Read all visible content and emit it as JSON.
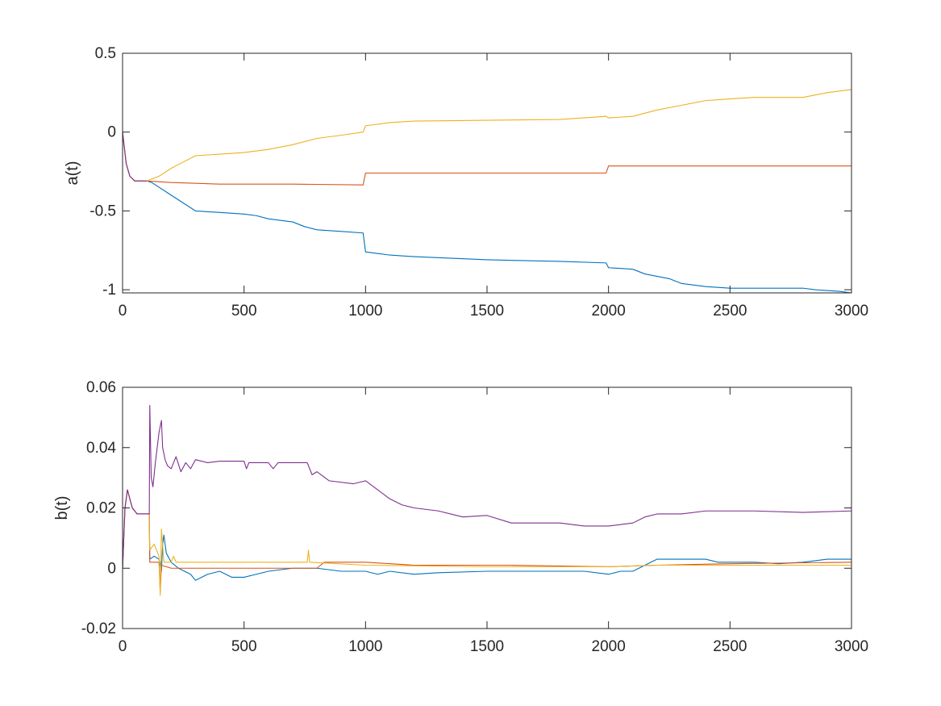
{
  "chart_data": [
    {
      "type": "line",
      "title": "",
      "xlabel": "",
      "ylabel": "a(t)",
      "xlim": [
        0,
        3000
      ],
      "ylim": [
        -1.02,
        0.5
      ],
      "xticks": [
        0,
        500,
        1000,
        1500,
        2000,
        2500,
        3000
      ],
      "xtick_labels": [
        "0",
        "500",
        "1000",
        "1500",
        "2000",
        "2500",
        "3000"
      ],
      "yticks": [
        -1,
        -0.5,
        0,
        0.5
      ],
      "ytick_labels": [
        "-1",
        "-0.5",
        "0",
        "0.5"
      ],
      "grid": false,
      "legend": "none",
      "series": [
        {
          "color": "#0072BD",
          "points": [
            [
              0,
              0
            ],
            [
              15,
              -0.2
            ],
            [
              30,
              -0.28
            ],
            [
              50,
              -0.31
            ],
            [
              100,
              -0.31
            ],
            [
              120,
              -0.32
            ],
            [
              150,
              -0.35
            ],
            [
              200,
              -0.4
            ],
            [
              250,
              -0.45
            ],
            [
              300,
              -0.5
            ],
            [
              400,
              -0.51
            ],
            [
              500,
              -0.52
            ],
            [
              550,
              -0.53
            ],
            [
              600,
              -0.55
            ],
            [
              700,
              -0.57
            ],
            [
              750,
              -0.6
            ],
            [
              800,
              -0.62
            ],
            [
              900,
              -0.63
            ],
            [
              990,
              -0.64
            ],
            [
              1000,
              -0.76
            ],
            [
              1050,
              -0.77
            ],
            [
              1100,
              -0.78
            ],
            [
              1200,
              -0.79
            ],
            [
              1500,
              -0.81
            ],
            [
              1800,
              -0.82
            ],
            [
              1990,
              -0.83
            ],
            [
              2000,
              -0.86
            ],
            [
              2100,
              -0.87
            ],
            [
              2150,
              -0.9
            ],
            [
              2250,
              -0.93
            ],
            [
              2300,
              -0.96
            ],
            [
              2400,
              -0.98
            ],
            [
              2500,
              -0.99
            ],
            [
              2800,
              -0.99
            ],
            [
              2850,
              -1.0
            ],
            [
              2950,
              -1.01
            ],
            [
              3000,
              -1.02
            ]
          ]
        },
        {
          "color": "#D95319",
          "points": [
            [
              0,
              0
            ],
            [
              15,
              -0.2
            ],
            [
              30,
              -0.28
            ],
            [
              50,
              -0.31
            ],
            [
              100,
              -0.31
            ],
            [
              200,
              -0.32
            ],
            [
              400,
              -0.33
            ],
            [
              700,
              -0.33
            ],
            [
              990,
              -0.335
            ],
            [
              1000,
              -0.26
            ],
            [
              1500,
              -0.26
            ],
            [
              1990,
              -0.26
            ],
            [
              2000,
              -0.215
            ],
            [
              3000,
              -0.215
            ]
          ]
        },
        {
          "color": "#EDB120",
          "points": [
            [
              0,
              0
            ],
            [
              15,
              -0.2
            ],
            [
              30,
              -0.28
            ],
            [
              50,
              -0.31
            ],
            [
              100,
              -0.31
            ],
            [
              150,
              -0.28
            ],
            [
              200,
              -0.23
            ],
            [
              250,
              -0.19
            ],
            [
              300,
              -0.15
            ],
            [
              400,
              -0.14
            ],
            [
              500,
              -0.13
            ],
            [
              600,
              -0.11
            ],
            [
              700,
              -0.08
            ],
            [
              800,
              -0.04
            ],
            [
              900,
              -0.02
            ],
            [
              990,
              0.0
            ],
            [
              1000,
              0.04
            ],
            [
              1100,
              0.06
            ],
            [
              1200,
              0.07
            ],
            [
              1500,
              0.075
            ],
            [
              1800,
              0.08
            ],
            [
              1990,
              0.1
            ],
            [
              2000,
              0.09
            ],
            [
              2100,
              0.1
            ],
            [
              2200,
              0.14
            ],
            [
              2300,
              0.17
            ],
            [
              2400,
              0.2
            ],
            [
              2600,
              0.22
            ],
            [
              2800,
              0.22
            ],
            [
              2900,
              0.25
            ],
            [
              3000,
              0.27
            ]
          ]
        },
        {
          "color": "#7E2F8E",
          "points": [
            [
              0,
              0
            ],
            [
              15,
              -0.2
            ],
            [
              30,
              -0.28
            ],
            [
              50,
              -0.31
            ],
            [
              100,
              -0.31
            ]
          ]
        }
      ]
    },
    {
      "type": "line",
      "title": "",
      "xlabel": "",
      "ylabel": "b(t)",
      "xlim": [
        0,
        3000
      ],
      "ylim": [
        -0.02,
        0.06
      ],
      "xticks": [
        0,
        500,
        1000,
        1500,
        2000,
        2500,
        3000
      ],
      "xtick_labels": [
        "0",
        "500",
        "1000",
        "1500",
        "2000",
        "2500",
        "3000"
      ],
      "yticks": [
        -0.02,
        0,
        0.02,
        0.04,
        0.06
      ],
      "ytick_labels": [
        "-0.02",
        "0",
        "0.02",
        "0.04",
        "0.06"
      ],
      "grid": false,
      "legend": "none",
      "series": [
        {
          "color": "#0072BD",
          "points": [
            [
              0,
              0
            ],
            [
              10,
              0.02
            ],
            [
              20,
              0.026
            ],
            [
              40,
              0.02
            ],
            [
              60,
              0.018
            ],
            [
              110,
              0.018
            ],
            [
              112,
              0.003
            ],
            [
              130,
              0.004
            ],
            [
              150,
              0.003
            ],
            [
              160,
              -0.001
            ],
            [
              165,
              0.008
            ],
            [
              170,
              0.011
            ],
            [
              180,
              0.005
            ],
            [
              200,
              0.002
            ],
            [
              230,
              0.0
            ],
            [
              280,
              -0.002
            ],
            [
              300,
              -0.004
            ],
            [
              350,
              -0.002
            ],
            [
              400,
              -0.001
            ],
            [
              450,
              -0.003
            ],
            [
              500,
              -0.003
            ],
            [
              550,
              -0.002
            ],
            [
              600,
              -0.001
            ],
            [
              700,
              0.0
            ],
            [
              800,
              0.0
            ],
            [
              900,
              -0.001
            ],
            [
              1000,
              -0.001
            ],
            [
              1050,
              -0.002
            ],
            [
              1100,
              -0.001
            ],
            [
              1200,
              -0.002
            ],
            [
              1300,
              -0.0015
            ],
            [
              1500,
              -0.001
            ],
            [
              1700,
              -0.001
            ],
            [
              1900,
              -0.001
            ],
            [
              2000,
              -0.002
            ],
            [
              2050,
              -0.001
            ],
            [
              2100,
              -0.001
            ],
            [
              2150,
              0.001
            ],
            [
              2200,
              0.003
            ],
            [
              2300,
              0.003
            ],
            [
              2400,
              0.003
            ],
            [
              2450,
              0.002
            ],
            [
              2600,
              0.002
            ],
            [
              2700,
              0.0015
            ],
            [
              2800,
              0.002
            ],
            [
              2900,
              0.003
            ],
            [
              3000,
              0.003
            ]
          ]
        },
        {
          "color": "#D95319",
          "points": [
            [
              0,
              0
            ],
            [
              10,
              0.02
            ],
            [
              20,
              0.026
            ],
            [
              40,
              0.02
            ],
            [
              60,
              0.018
            ],
            [
              110,
              0.018
            ],
            [
              112,
              0.002
            ],
            [
              150,
              0.002
            ],
            [
              155,
              -0.008
            ],
            [
              160,
              0.001
            ],
            [
              200,
              0.0
            ],
            [
              500,
              0.0
            ],
            [
              800,
              0.0
            ],
            [
              830,
              0.002
            ],
            [
              1000,
              0.002
            ],
            [
              1200,
              0.001
            ],
            [
              1600,
              0.001
            ],
            [
              2000,
              0.0005
            ],
            [
              2200,
              0.001
            ],
            [
              2500,
              0.0015
            ],
            [
              3000,
              0.002
            ]
          ]
        },
        {
          "color": "#EDB120",
          "points": [
            [
              0,
              0
            ],
            [
              10,
              0.02
            ],
            [
              20,
              0.026
            ],
            [
              40,
              0.02
            ],
            [
              60,
              0.018
            ],
            [
              110,
              0.018
            ],
            [
              112,
              0.006
            ],
            [
              130,
              0.008
            ],
            [
              150,
              0.004
            ],
            [
              155,
              -0.009
            ],
            [
              160,
              0.013
            ],
            [
              170,
              0.002
            ],
            [
              200,
              0.002
            ],
            [
              210,
              0.004
            ],
            [
              220,
              0.002
            ],
            [
              300,
              0.002
            ],
            [
              500,
              0.002
            ],
            [
              760,
              0.002
            ],
            [
              765,
              0.006
            ],
            [
              770,
              0.002
            ],
            [
              1000,
              0.001
            ],
            [
              1500,
              0.0005
            ],
            [
              2000,
              0.0005
            ],
            [
              2200,
              0.001
            ],
            [
              2500,
              0.001
            ],
            [
              3000,
              0.001
            ]
          ]
        },
        {
          "color": "#7E2F8E",
          "points": [
            [
              0,
              0
            ],
            [
              10,
              0.02
            ],
            [
              20,
              0.026
            ],
            [
              40,
              0.02
            ],
            [
              60,
              0.018
            ],
            [
              110,
              0.018
            ],
            [
              112,
              0.054
            ],
            [
              118,
              0.03
            ],
            [
              125,
              0.027
            ],
            [
              135,
              0.035
            ],
            [
              150,
              0.045
            ],
            [
              160,
              0.049
            ],
            [
              165,
              0.04
            ],
            [
              175,
              0.036
            ],
            [
              185,
              0.034
            ],
            [
              200,
              0.033
            ],
            [
              220,
              0.037
            ],
            [
              240,
              0.032
            ],
            [
              260,
              0.035
            ],
            [
              280,
              0.033
            ],
            [
              300,
              0.036
            ],
            [
              350,
              0.035
            ],
            [
              400,
              0.0355
            ],
            [
              500,
              0.0355
            ],
            [
              510,
              0.033
            ],
            [
              520,
              0.035
            ],
            [
              600,
              0.035
            ],
            [
              620,
              0.033
            ],
            [
              640,
              0.035
            ],
            [
              760,
              0.035
            ],
            [
              780,
              0.031
            ],
            [
              800,
              0.032
            ],
            [
              850,
              0.029
            ],
            [
              950,
              0.028
            ],
            [
              1000,
              0.029
            ],
            [
              1050,
              0.026
            ],
            [
              1100,
              0.023
            ],
            [
              1150,
              0.021
            ],
            [
              1200,
              0.02
            ],
            [
              1300,
              0.019
            ],
            [
              1400,
              0.017
            ],
            [
              1500,
              0.0175
            ],
            [
              1600,
              0.015
            ],
            [
              1700,
              0.015
            ],
            [
              1800,
              0.015
            ],
            [
              1900,
              0.014
            ],
            [
              2000,
              0.014
            ],
            [
              2100,
              0.015
            ],
            [
              2150,
              0.017
            ],
            [
              2200,
              0.018
            ],
            [
              2300,
              0.018
            ],
            [
              2400,
              0.019
            ],
            [
              2600,
              0.019
            ],
            [
              2800,
              0.0185
            ],
            [
              3000,
              0.019
            ]
          ]
        }
      ]
    }
  ]
}
